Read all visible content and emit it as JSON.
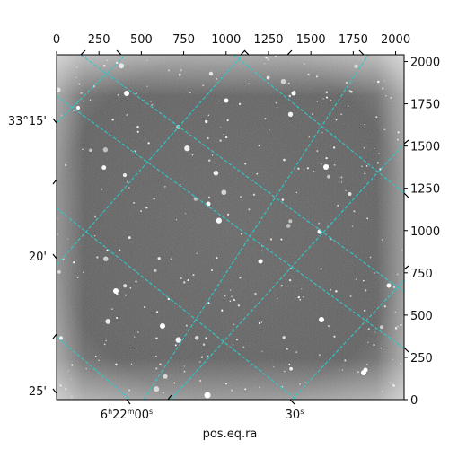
{
  "chart_data": {
    "type": "image",
    "xlabel": "pos.eq.ra",
    "ylabel": "",
    "pixel_axes": {
      "x_ticks": [
        0,
        250,
        500,
        750,
        1000,
        1250,
        1500,
        1750,
        2000
      ],
      "y_ticks": [
        0,
        250,
        500,
        750,
        1000,
        1250,
        1500,
        1750,
        2000
      ],
      "xlim": [
        0,
        2050
      ],
      "ylim": [
        0,
        2040
      ]
    },
    "world_axes": {
      "ra_ticks": [
        {
          "value": "6h22m00s",
          "h": "6",
          "m": "22",
          "s": "00"
        },
        {
          "value": "30s",
          "s": "30"
        }
      ],
      "dec_ticks": [
        "33°15'",
        "20'",
        "25'"
      ]
    },
    "grid": true,
    "grid_color": "#2ec9c9",
    "background": "grayscale star field"
  }
}
